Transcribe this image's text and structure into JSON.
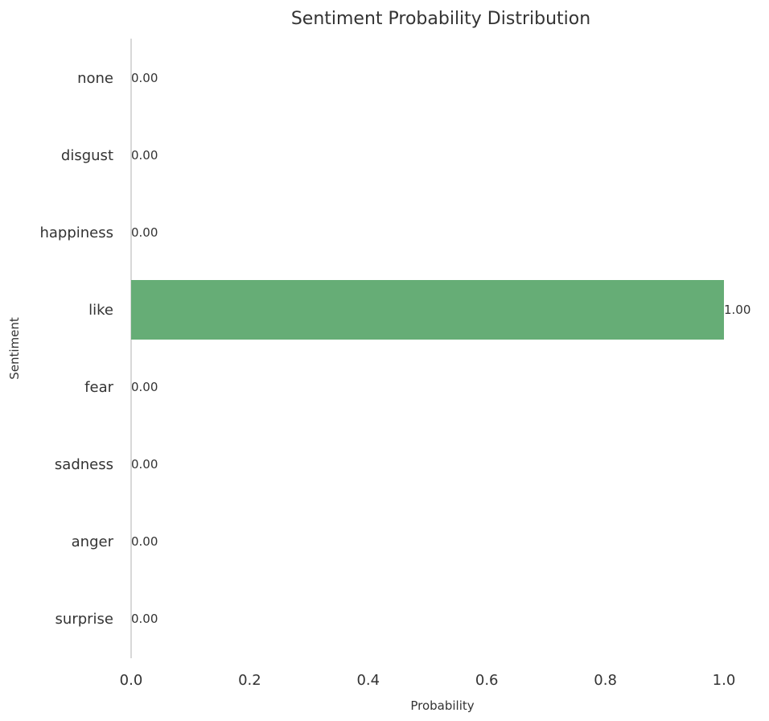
{
  "chart_data": {
    "type": "bar",
    "orientation": "horizontal",
    "title": "Sentiment Probability Distribution",
    "xlabel": "Probability",
    "ylabel": "Sentiment",
    "categories": [
      "none",
      "disgust",
      "happiness",
      "like",
      "fear",
      "sadness",
      "anger",
      "surprise"
    ],
    "values": [
      0.0,
      0.0,
      0.0,
      1.0,
      0.0,
      0.0,
      0.0,
      0.0
    ],
    "value_labels": [
      "0.00",
      "0.00",
      "0.00",
      "1.00",
      "0.00",
      "0.00",
      "0.00",
      "0.00"
    ],
    "xlim": [
      0,
      1
    ],
    "xticks": [
      0.0,
      0.2,
      0.4,
      0.6,
      0.8,
      1.0
    ],
    "xtick_labels": [
      "0.0",
      "0.2",
      "0.4",
      "0.6",
      "0.8",
      "1.0"
    ],
    "grid": false,
    "bar_color": "#66ad76",
    "axis_color": "#cccccc"
  }
}
